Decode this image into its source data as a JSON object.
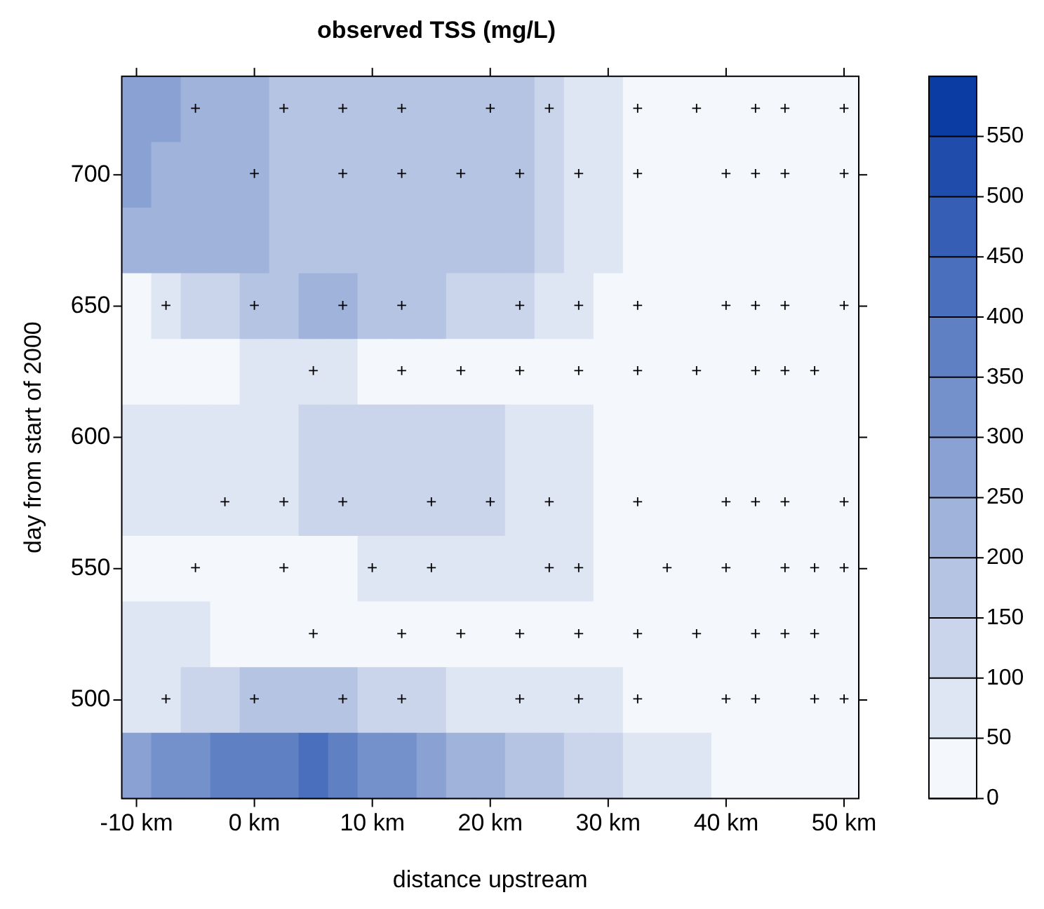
{
  "chart_data": {
    "type": "heatmap",
    "title": "observed TSS (mg/L)",
    "xlabel": "distance upstream",
    "ylabel": "day from start of 2000",
    "categories": [
      "-10 km",
      null,
      null,
      null,
      "0 km",
      null,
      null,
      null,
      "10 km",
      null,
      null,
      null,
      "20 km",
      null,
      null,
      null,
      "30 km",
      null,
      null,
      null,
      "40 km",
      null,
      null,
      null,
      "50 km"
    ],
    "y_categories": [
      null,
      "700",
      null,
      "650",
      null,
      "600",
      null,
      "550",
      null,
      "500",
      null
    ],
    "cells": [
      [
        275,
        275,
        225,
        225,
        225,
        175,
        175,
        175,
        175,
        175,
        175,
        175,
        175,
        175,
        125,
        75,
        75,
        25,
        25,
        25,
        25,
        25,
        25,
        25,
        25
      ],
      [
        275,
        225,
        225,
        225,
        225,
        175,
        175,
        175,
        175,
        175,
        175,
        175,
        175,
        175,
        125,
        75,
        75,
        25,
        25,
        25,
        25,
        25,
        25,
        25,
        25
      ],
      [
        225,
        225,
        225,
        225,
        225,
        175,
        175,
        175,
        175,
        175,
        175,
        175,
        175,
        175,
        125,
        75,
        75,
        25,
        25,
        25,
        25,
        25,
        25,
        25,
        25
      ],
      [
        25,
        75,
        125,
        125,
        175,
        175,
        225,
        225,
        175,
        175,
        175,
        125,
        125,
        125,
        75,
        75,
        25,
        25,
        25,
        25,
        25,
        25,
        25,
        25,
        25
      ],
      [
        25,
        25,
        25,
        25,
        75,
        75,
        75,
        75,
        25,
        25,
        25,
        25,
        25,
        25,
        25,
        25,
        25,
        25,
        25,
        25,
        25,
        25,
        25,
        25,
        25
      ],
      [
        75,
        75,
        75,
        75,
        75,
        75,
        125,
        125,
        125,
        125,
        125,
        125,
        125,
        75,
        75,
        75,
        25,
        25,
        25,
        25,
        25,
        25,
        25,
        25,
        25
      ],
      [
        75,
        75,
        75,
        75,
        75,
        75,
        125,
        125,
        125,
        125,
        125,
        125,
        125,
        75,
        75,
        75,
        25,
        25,
        25,
        25,
        25,
        25,
        25,
        25,
        25
      ],
      [
        25,
        25,
        25,
        25,
        25,
        25,
        25,
        25,
        75,
        75,
        75,
        75,
        75,
        75,
        75,
        75,
        25,
        25,
        25,
        25,
        25,
        25,
        25,
        25,
        25
      ],
      [
        75,
        75,
        75,
        25,
        25,
        25,
        25,
        25,
        25,
        25,
        25,
        25,
        25,
        25,
        25,
        25,
        25,
        25,
        25,
        25,
        25,
        25,
        25,
        25,
        25
      ],
      [
        75,
        75,
        125,
        125,
        175,
        175,
        175,
        175,
        125,
        125,
        125,
        75,
        75,
        75,
        75,
        75,
        75,
        25,
        25,
        25,
        25,
        25,
        25,
        25,
        25
      ],
      [
        275,
        325,
        325,
        375,
        375,
        375,
        425,
        375,
        325,
        325,
        275,
        225,
        225,
        175,
        175,
        125,
        125,
        75,
        75,
        75,
        25,
        25,
        25,
        25,
        25
      ]
    ],
    "cell_labels": [
      [
        null,
        null,
        "+",
        null,
        null,
        "+",
        null,
        "+",
        null,
        "+",
        null,
        null,
        "+",
        null,
        "+",
        null,
        null,
        "+",
        null,
        "+",
        null,
        "+",
        "+",
        null,
        "+"
      ],
      [
        null,
        null,
        null,
        null,
        "+",
        null,
        null,
        "+",
        null,
        "+",
        null,
        "+",
        null,
        "+",
        null,
        "+",
        null,
        "+",
        null,
        null,
        "+",
        "+",
        "+",
        null,
        "+"
      ],
      [
        null,
        null,
        null,
        null,
        null,
        null,
        null,
        null,
        null,
        null,
        null,
        null,
        null,
        null,
        null,
        null,
        null,
        null,
        null,
        null,
        null,
        null,
        null,
        null,
        null
      ],
      [
        null,
        "+",
        null,
        null,
        "+",
        null,
        null,
        "+",
        null,
        "+",
        null,
        null,
        null,
        "+",
        null,
        "+",
        null,
        "+",
        null,
        null,
        "+",
        "+",
        "+",
        null,
        "+"
      ],
      [
        null,
        null,
        null,
        null,
        null,
        null,
        "+",
        null,
        null,
        "+",
        null,
        "+",
        null,
        "+",
        null,
        "+",
        null,
        "+",
        null,
        "+",
        null,
        "+",
        "+",
        "+",
        null
      ],
      [
        null,
        null,
        null,
        null,
        null,
        null,
        null,
        null,
        null,
        null,
        null,
        null,
        null,
        null,
        null,
        null,
        null,
        null,
        null,
        null,
        null,
        null,
        null,
        null,
        null
      ],
      [
        null,
        null,
        null,
        "+",
        null,
        "+",
        null,
        "+",
        null,
        null,
        "+",
        null,
        "+",
        null,
        "+",
        null,
        null,
        "+",
        null,
        null,
        "+",
        "+",
        "+",
        null,
        "+"
      ],
      [
        null,
        null,
        "+",
        null,
        null,
        "+",
        null,
        null,
        "+",
        null,
        "+",
        null,
        null,
        null,
        "+",
        "+",
        null,
        null,
        "+",
        null,
        "+",
        null,
        "+",
        "+",
        "+"
      ],
      [
        null,
        null,
        null,
        null,
        null,
        null,
        "+",
        null,
        null,
        "+",
        null,
        "+",
        null,
        "+",
        null,
        "+",
        null,
        "+",
        null,
        "+",
        null,
        "+",
        "+",
        "+",
        null
      ],
      [
        null,
        "+",
        null,
        null,
        "+",
        null,
        null,
        "+",
        null,
        "+",
        null,
        null,
        null,
        "+",
        null,
        "+",
        null,
        "+",
        null,
        null,
        "+",
        "+",
        null,
        "+",
        "+"
      ],
      [
        null,
        null,
        null,
        null,
        null,
        null,
        null,
        null,
        null,
        null,
        null,
        null,
        null,
        null,
        null,
        null,
        null,
        null,
        null,
        null,
        null,
        null,
        null,
        null,
        null
      ]
    ],
    "clim": [
      0,
      600
    ],
    "cticks": [
      0,
      50,
      100,
      150,
      200,
      250,
      300,
      350,
      400,
      450,
      500,
      550
    ]
  }
}
